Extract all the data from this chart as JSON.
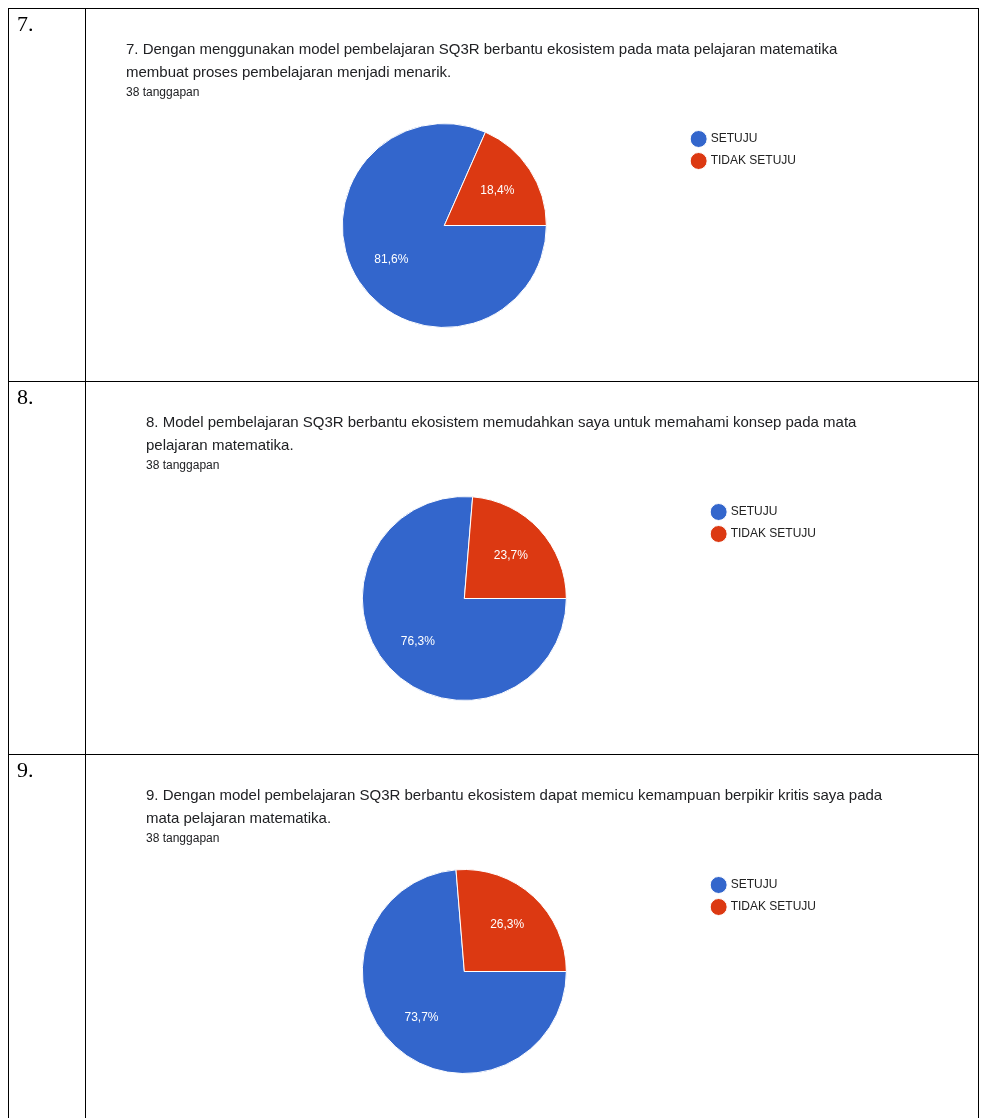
{
  "chart_data": [
    {
      "type": "pie",
      "annotations": [
        "7."
      ],
      "title": "7. Dengan menggunakan model pembelajaran SQ3R berbantu ekosistem pada mata pelajaran matematika membuat proses pembelajaran menjadi menarik.",
      "subtitle": "38 tanggapan",
      "categories": [
        "SETUJU",
        "TIDAK SETUJU"
      ],
      "values": [
        81.6,
        18.4
      ],
      "colors": [
        "#3366cc",
        "#dc3912"
      ],
      "value_labels": [
        "81,6%",
        "18,4%"
      ],
      "legend": "right"
    },
    {
      "type": "pie",
      "annotations": [
        "8."
      ],
      "title": "8. Model pembelajaran SQ3R berbantu ekosistem memudahkan saya untuk memahami konsep pada mata pelajaran matematika.",
      "subtitle": "38 tanggapan",
      "categories": [
        "SETUJU",
        "TIDAK SETUJU"
      ],
      "values": [
        76.3,
        23.7
      ],
      "colors": [
        "#3366cc",
        "#dc3912"
      ],
      "value_labels": [
        "76,3%",
        "23,7%"
      ],
      "legend": "right"
    },
    {
      "type": "pie",
      "annotations": [
        "9."
      ],
      "title": "9. Dengan model pembelajaran SQ3R berbantu ekosistem dapat memicu kemampuan berpikir kritis saya pada mata pelajaran matematika.",
      "subtitle": "38 tanggapan",
      "categories": [
        "SETUJU",
        "TIDAK SETUJU"
      ],
      "values": [
        73.7,
        26.3
      ],
      "colors": [
        "#3366cc",
        "#dc3912"
      ],
      "value_labels": [
        "73,7%",
        "26,3%"
      ],
      "legend": "right"
    }
  ]
}
